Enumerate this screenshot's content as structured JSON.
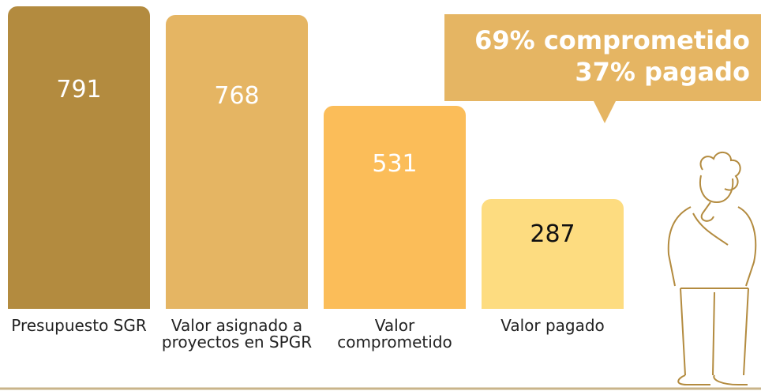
{
  "chart_data": {
    "type": "bar",
    "categories": [
      "Presupuesto SGR",
      "Valor asignado a proyectos en SPGR",
      "Valor comprometido",
      "Valor pagado"
    ],
    "values": [
      791,
      768,
      531,
      287
    ],
    "colors": [
      "#b38b3f",
      "#e5b563",
      "#fbbd59",
      "#fddc80"
    ],
    "label_colors": [
      "#ffffff",
      "#ffffff",
      "#ffffff",
      "#111111"
    ],
    "annotations": [
      "69% comprometido",
      "37% pagado"
    ]
  }
}
